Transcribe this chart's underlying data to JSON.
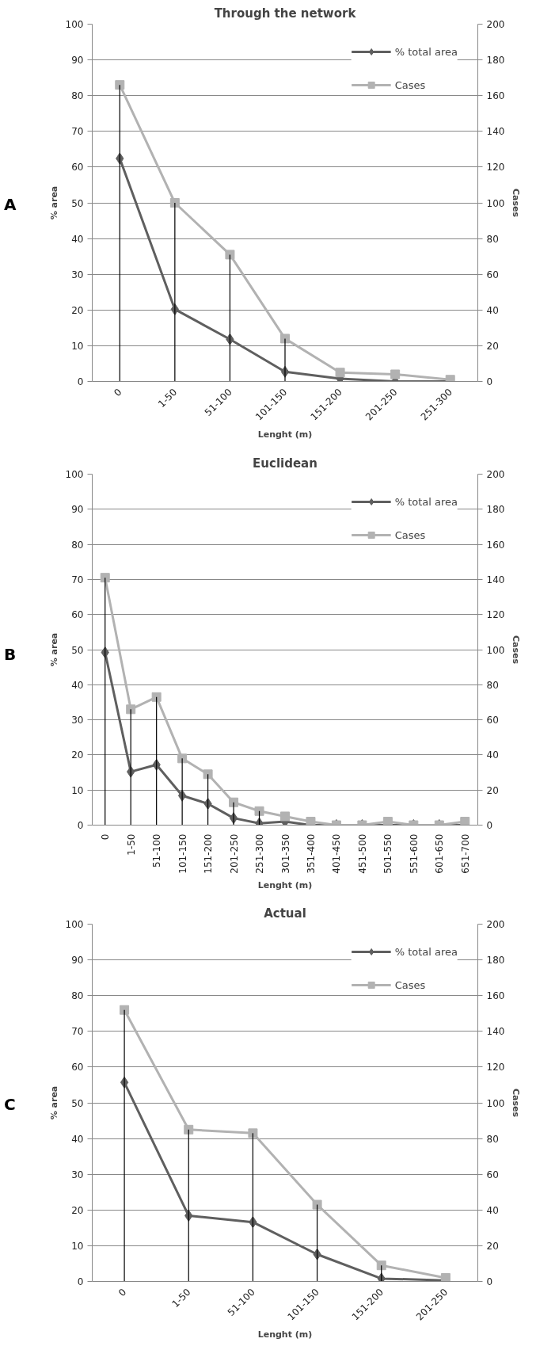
{
  "chart_data": [
    {
      "type": "line",
      "title": "Through the network",
      "xlabel": "Lenght (m)",
      "ylabel": "% area",
      "y2label": "Cases",
      "annotations": [
        "A"
      ],
      "categories": [
        "0",
        "1-50",
        "51-100",
        "101-150",
        "151-200",
        "201-250",
        "251-300"
      ],
      "ylim": [
        0,
        100
      ],
      "yticks": [
        0,
        10,
        20,
        30,
        40,
        50,
        60,
        70,
        80,
        90,
        100
      ],
      "y2lim": [
        0,
        200
      ],
      "y2ticks": [
        0,
        20,
        40,
        60,
        80,
        100,
        120,
        140,
        160,
        180,
        200
      ],
      "grid": "y",
      "legend": "top right",
      "series": [
        {
          "name": "% total area",
          "color": "#5f5f5f",
          "marker": "diamond",
          "values": [
            62.4,
            20.2,
            11.8,
            2.7,
            0.8,
            0,
            0
          ]
        },
        {
          "name": "Cases",
          "color": "#b2b2b2",
          "marker": "square",
          "axis": "y2",
          "values": [
            166,
            100,
            71,
            24,
            5,
            4,
            1
          ],
          "errors": [
            [
              0,
              166
            ],
            [
              0,
              100
            ],
            [
              0,
              71
            ],
            [
              0,
              24
            ],
            null,
            null,
            null
          ]
        }
      ]
    },
    {
      "type": "line",
      "title": "Euclidean",
      "xlabel": "Lenght (m)",
      "ylabel": "% area",
      "y2label": "Cases",
      "annotations": [
        "B"
      ],
      "categories": [
        "0",
        "1-50",
        "51-100",
        "101-150",
        "151-200",
        "201-250",
        "251-300",
        "301-350",
        "351-400",
        "401-450",
        "451-500",
        "501-550",
        "551-600",
        "601-650",
        "651-700"
      ],
      "ylim": [
        0,
        100
      ],
      "yticks": [
        0,
        10,
        20,
        30,
        40,
        50,
        60,
        70,
        80,
        90,
        100
      ],
      "y2lim": [
        0,
        200
      ],
      "y2ticks": [
        0,
        20,
        40,
        60,
        80,
        100,
        120,
        140,
        160,
        180,
        200
      ],
      "grid": "y",
      "legend": "top right",
      "series": [
        {
          "name": "% total area",
          "color": "#5f5f5f",
          "marker": "diamond",
          "values": [
            49.2,
            15.2,
            17.2,
            8.4,
            6.1,
            2,
            0.5,
            1,
            0,
            0,
            0,
            0,
            0,
            0,
            0
          ]
        },
        {
          "name": "Cases",
          "color": "#b2b2b2",
          "marker": "square",
          "axis": "y2",
          "values": [
            141,
            66,
            73,
            38,
            29,
            13,
            8,
            5,
            2,
            0,
            0,
            2,
            0,
            0,
            2
          ],
          "errors": [
            [
              0,
              141
            ],
            [
              0,
              66
            ],
            [
              0,
              73
            ],
            [
              0,
              38
            ],
            [
              0,
              29
            ],
            [
              0,
              13
            ],
            [
              0,
              8
            ],
            null,
            null,
            null,
            null,
            null,
            null,
            null,
            null
          ]
        }
      ]
    },
    {
      "type": "line",
      "title": "Actual",
      "xlabel": "Lenght (m)",
      "ylabel": "% area",
      "y2label": "Cases",
      "annotations": [
        "C"
      ],
      "categories": [
        "0",
        "1-50",
        "51-100",
        "101-150",
        "151-200",
        "201-250"
      ],
      "ylim": [
        0,
        100
      ],
      "yticks": [
        0,
        10,
        20,
        30,
        40,
        50,
        60,
        70,
        80,
        90,
        100
      ],
      "y2lim": [
        0,
        200
      ],
      "y2ticks": [
        0,
        20,
        40,
        60,
        80,
        100,
        120,
        140,
        160,
        180,
        200
      ],
      "grid": "y",
      "legend": "top right",
      "series": [
        {
          "name": "% total area",
          "color": "#5f5f5f",
          "marker": "diamond",
          "values": [
            55.7,
            18.4,
            16.6,
            7.6,
            0.8,
            0.3
          ]
        },
        {
          "name": "Cases",
          "color": "#b2b2b2",
          "marker": "square",
          "axis": "y2",
          "values": [
            152,
            85,
            83,
            43,
            9,
            2
          ],
          "errors": [
            [
              0,
              152
            ],
            [
              0,
              85
            ],
            [
              0,
              83
            ],
            [
              0,
              43
            ],
            [
              0,
              9
            ],
            null
          ]
        }
      ]
    }
  ]
}
